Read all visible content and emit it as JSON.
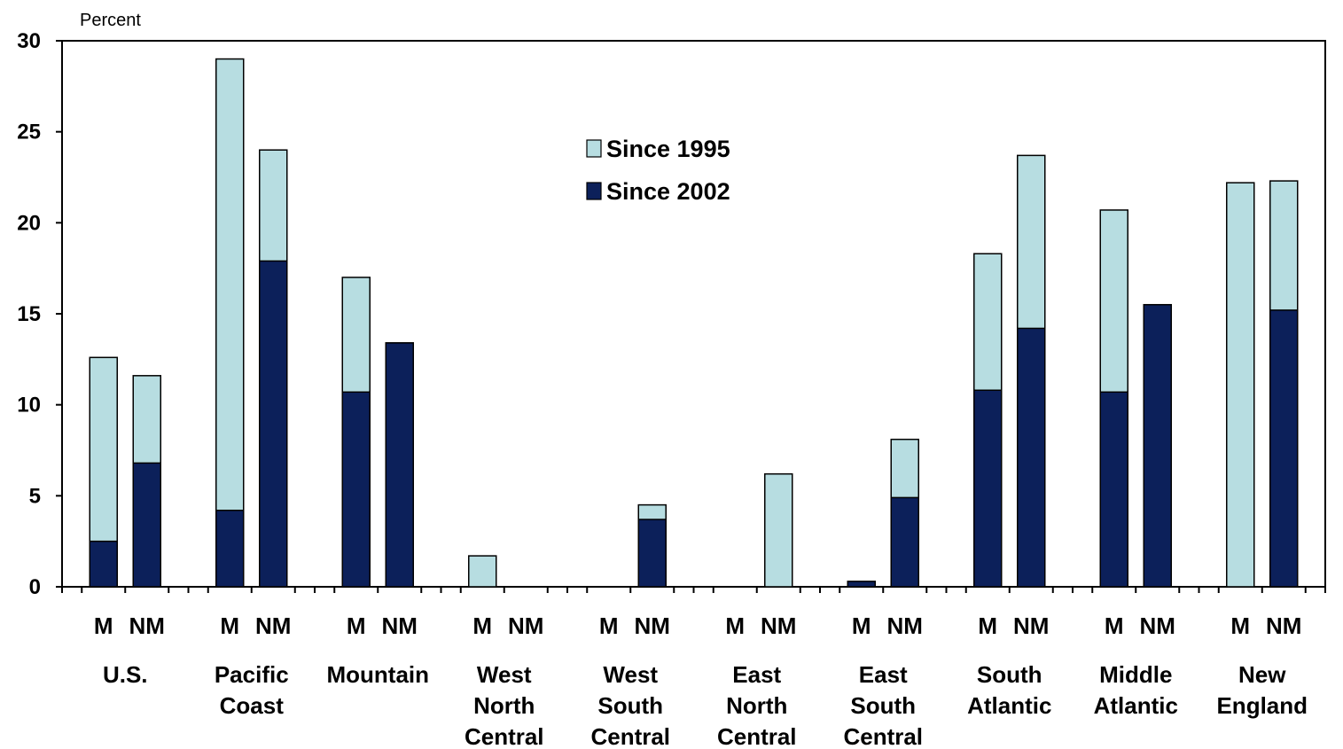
{
  "chart_data": {
    "type": "bar",
    "stacking": "overlap",
    "y_unit_label": "Percent",
    "ylim": [
      0,
      30
    ],
    "yticks": [
      0,
      5,
      10,
      15,
      20,
      25,
      30
    ],
    "grid": false,
    "legend_position": "top-center",
    "groups": [
      {
        "label_lines": [
          "U.S."
        ]
      },
      {
        "label_lines": [
          "Pacific",
          "Coast"
        ]
      },
      {
        "label_lines": [
          "Mountain"
        ]
      },
      {
        "label_lines": [
          "West",
          "North",
          "Central"
        ]
      },
      {
        "label_lines": [
          "West",
          "South",
          "Central"
        ]
      },
      {
        "label_lines": [
          "East",
          "North",
          "Central"
        ]
      },
      {
        "label_lines": [
          "East",
          "South",
          "Central"
        ]
      },
      {
        "label_lines": [
          "South",
          "Atlantic"
        ]
      },
      {
        "label_lines": [
          "Middle",
          "Atlantic"
        ]
      },
      {
        "label_lines": [
          "New",
          "England"
        ]
      }
    ],
    "subcategories": [
      "M",
      "NM"
    ],
    "series": [
      {
        "name": "Since 1995",
        "color": "#b7dde1",
        "values": [
          [
            12.6,
            11.6
          ],
          [
            29.0,
            24.0
          ],
          [
            17.0,
            13.4
          ],
          [
            1.7,
            0
          ],
          [
            0,
            4.5
          ],
          [
            0,
            6.2
          ],
          [
            0,
            8.1
          ],
          [
            18.3,
            23.7
          ],
          [
            20.7,
            15.5
          ],
          [
            22.2,
            22.3
          ]
        ]
      },
      {
        "name": "Since 2002",
        "color": "#0c205a",
        "values": [
          [
            2.5,
            6.8
          ],
          [
            4.2,
            17.9
          ],
          [
            10.7,
            13.4
          ],
          [
            0,
            0
          ],
          [
            0,
            3.7
          ],
          [
            0,
            0
          ],
          [
            0.3,
            4.9
          ],
          [
            10.8,
            14.2
          ],
          [
            10.7,
            15.5
          ],
          [
            0,
            15.2
          ]
        ]
      }
    ]
  }
}
